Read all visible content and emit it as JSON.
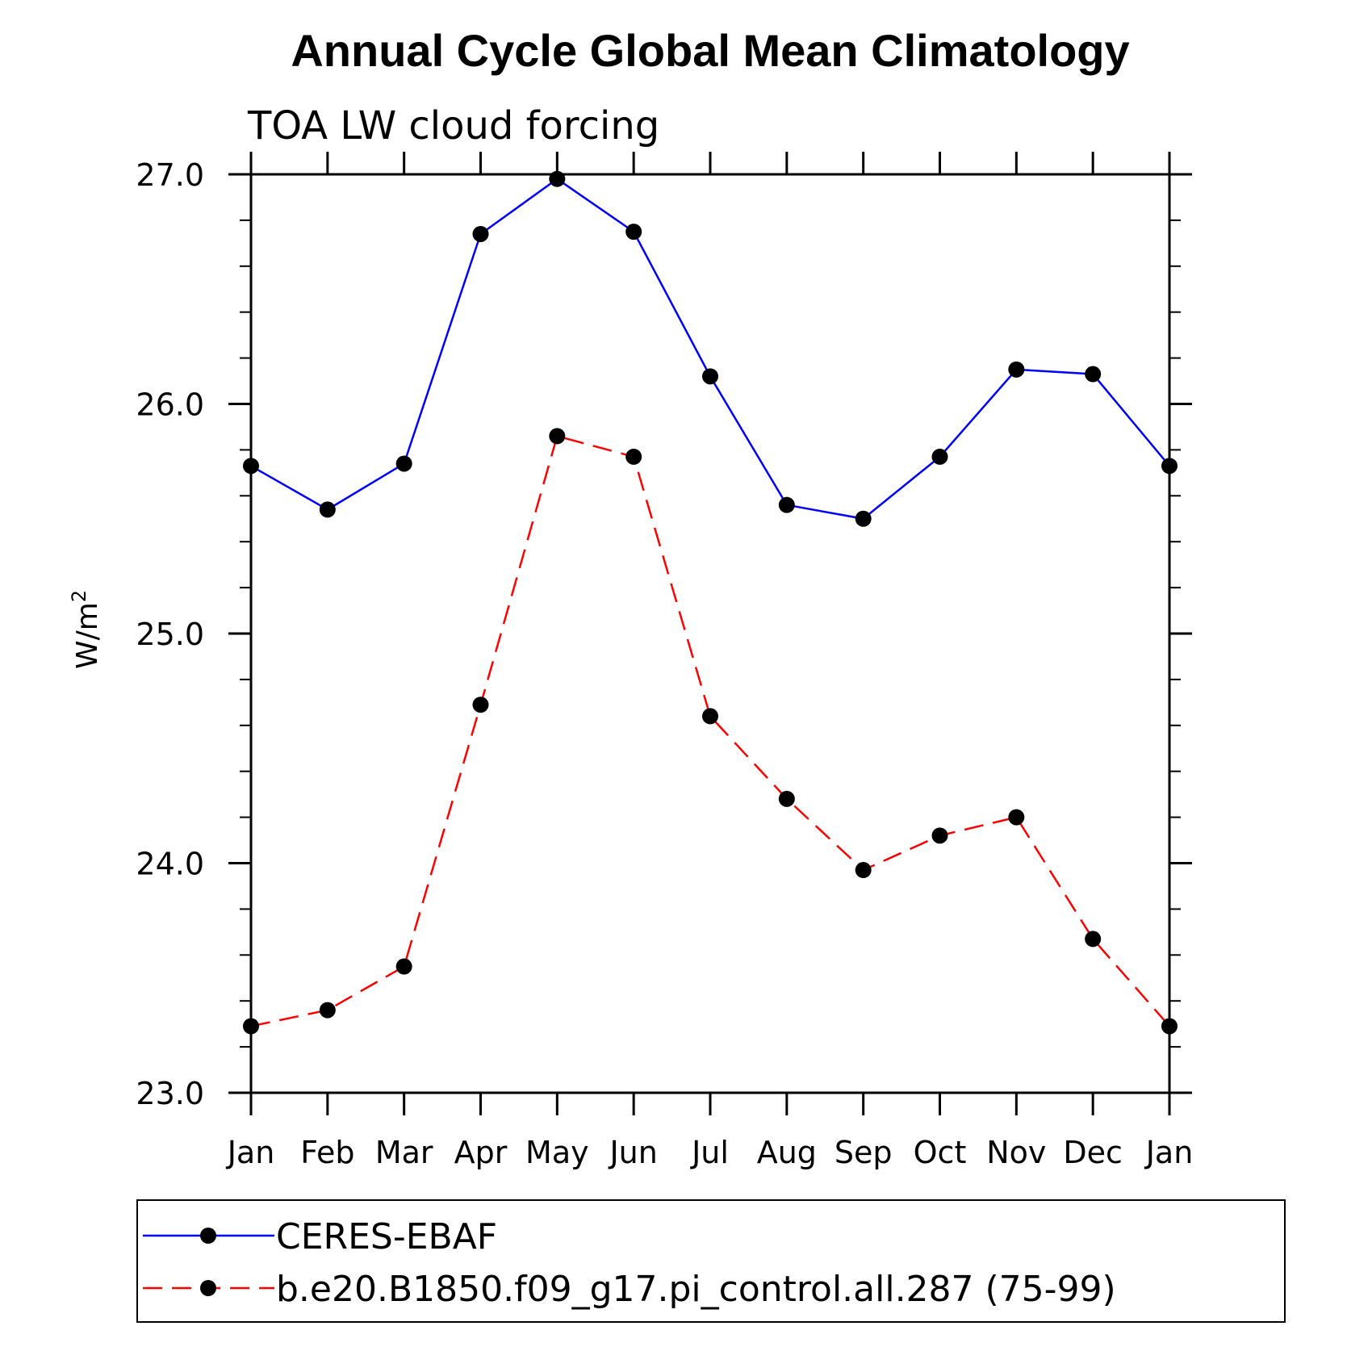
{
  "chart_data": {
    "type": "line",
    "title": "Annual Cycle Global Mean Climatology",
    "subtitle": "TOA LW cloud forcing",
    "ylabel": "W/m",
    "ylabel_superscript": "2",
    "xlabel": "",
    "categories": [
      "Jan",
      "Feb",
      "Mar",
      "Apr",
      "May",
      "Jun",
      "Jul",
      "Aug",
      "Sep",
      "Oct",
      "Nov",
      "Dec",
      "Jan"
    ],
    "ylim": [
      23.0,
      27.0
    ],
    "yticks": [
      "23.0",
      "24.0",
      "25.0",
      "26.0",
      "27.0"
    ],
    "grid": false,
    "legend_position": "bottom",
    "series": [
      {
        "name": "CERES-EBAF",
        "color": "#0000ff",
        "dash": "solid",
        "marker": "filled-circle",
        "values": [
          25.73,
          25.54,
          25.74,
          26.74,
          26.98,
          26.75,
          26.12,
          25.56,
          25.5,
          25.77,
          26.15,
          26.13,
          25.73
        ]
      },
      {
        "name": "b.e20.B1850.f09_g17.pi_control.all.287 (75-99)",
        "color": "#ff0000",
        "dash": "dashed",
        "marker": "filled-circle",
        "values": [
          23.29,
          23.36,
          23.55,
          24.69,
          25.86,
          25.77,
          24.64,
          24.28,
          23.97,
          24.12,
          24.2,
          23.67,
          23.29
        ]
      }
    ]
  }
}
